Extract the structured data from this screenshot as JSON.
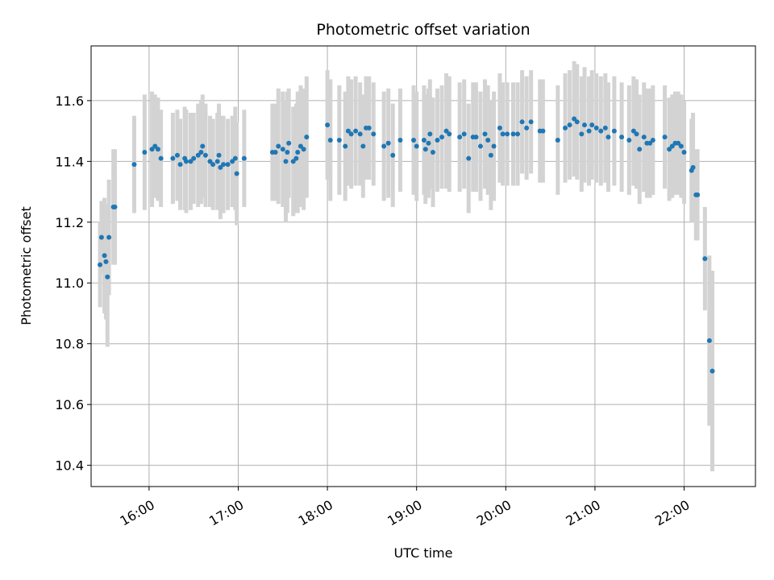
{
  "chart_data": {
    "type": "scatter",
    "title": "Photometric offset variation",
    "xlabel": "UTC time",
    "ylabel": "Photometric offset",
    "x_unit": "UTC time (hours)",
    "xlim": [
      15.35,
      22.8
    ],
    "ylim": [
      10.33,
      11.78
    ],
    "xticks": [
      16,
      17,
      18,
      19,
      20,
      21,
      22
    ],
    "xtick_labels": [
      "16:00",
      "17:00",
      "18:00",
      "19:00",
      "20:00",
      "21:00",
      "22:00"
    ],
    "yticks": [
      10.4,
      10.6,
      10.8,
      11.0,
      11.2,
      11.4,
      11.6
    ],
    "ytick_labels": [
      "10.4",
      "10.6",
      "10.8",
      "11.0",
      "11.2",
      "11.4",
      "11.6"
    ],
    "grid": true,
    "colors": {
      "point": "#1f77b4",
      "errorbar": "#d3d3d3",
      "grid": "#b0b0b0"
    },
    "series": [
      {
        "values": [
          {
            "x": "15:27",
            "y": 11.06,
            "err": 0.14
          },
          {
            "x": "15:28",
            "y": 11.15,
            "err": 0.12
          },
          {
            "x": "15:30",
            "y": 11.09,
            "err": 0.19
          },
          {
            "x": "15:31",
            "y": 11.07,
            "err": 0.19
          },
          {
            "x": "15:32",
            "y": 11.02,
            "err": 0.23
          },
          {
            "x": "15:33",
            "y": 11.15,
            "err": 0.19
          },
          {
            "x": "15:36",
            "y": 11.25,
            "err": 0.19
          },
          {
            "x": "15:37",
            "y": 11.25,
            "err": 0.19
          },
          {
            "x": "15:50",
            "y": 11.39,
            "err": 0.16
          },
          {
            "x": "15:57",
            "y": 11.43,
            "err": 0.19
          },
          {
            "x": "16:02",
            "y": 11.44,
            "err": 0.19
          },
          {
            "x": "16:04",
            "y": 11.45,
            "err": 0.17
          },
          {
            "x": "16:06",
            "y": 11.44,
            "err": 0.17
          },
          {
            "x": "16:08",
            "y": 11.41,
            "err": 0.16
          },
          {
            "x": "16:16",
            "y": 11.41,
            "err": 0.15
          },
          {
            "x": "16:19",
            "y": 11.42,
            "err": 0.15
          },
          {
            "x": "16:21",
            "y": 11.39,
            "err": 0.15
          },
          {
            "x": "16:24",
            "y": 11.41,
            "err": 0.17
          },
          {
            "x": "16:25",
            "y": 11.4,
            "err": 0.17
          },
          {
            "x": "16:28",
            "y": 11.4,
            "err": 0.16
          },
          {
            "x": "16:30",
            "y": 11.41,
            "err": 0.15
          },
          {
            "x": "16:33",
            "y": 11.42,
            "err": 0.17
          },
          {
            "x": "16:35",
            "y": 11.43,
            "err": 0.17
          },
          {
            "x": "16:36",
            "y": 11.45,
            "err": 0.17
          },
          {
            "x": "16:38",
            "y": 11.42,
            "err": 0.17
          },
          {
            "x": "16:41",
            "y": 11.4,
            "err": 0.15
          },
          {
            "x": "16:43",
            "y": 11.39,
            "err": 0.15
          },
          {
            "x": "16:46",
            "y": 11.4,
            "err": 0.16
          },
          {
            "x": "16:47",
            "y": 11.42,
            "err": 0.17
          },
          {
            "x": "16:48",
            "y": 11.38,
            "err": 0.17
          },
          {
            "x": "16:50",
            "y": 11.39,
            "err": 0.16
          },
          {
            "x": "16:53",
            "y": 11.39,
            "err": 0.15
          },
          {
            "x": "16:56",
            "y": 11.4,
            "err": 0.15
          },
          {
            "x": "16:58",
            "y": 11.41,
            "err": 0.17
          },
          {
            "x": "16:59",
            "y": 11.36,
            "err": 0.17
          },
          {
            "x": "17:04",
            "y": 11.41,
            "err": 0.16
          },
          {
            "x": "17:23",
            "y": 11.43,
            "err": 0.16
          },
          {
            "x": "17:25",
            "y": 11.43,
            "err": 0.16
          },
          {
            "x": "17:27",
            "y": 11.45,
            "err": 0.19
          },
          {
            "x": "17:30",
            "y": 11.44,
            "err": 0.19
          },
          {
            "x": "17:32",
            "y": 11.4,
            "err": 0.2
          },
          {
            "x": "17:33",
            "y": 11.43,
            "err": 0.2
          },
          {
            "x": "17:34",
            "y": 11.46,
            "err": 0.18
          },
          {
            "x": "17:37",
            "y": 11.4,
            "err": 0.18
          },
          {
            "x": "17:39",
            "y": 11.41,
            "err": 0.18
          },
          {
            "x": "17:40",
            "y": 11.43,
            "err": 0.2
          },
          {
            "x": "17:42",
            "y": 11.45,
            "err": 0.2
          },
          {
            "x": "17:44",
            "y": 11.44,
            "err": 0.2
          },
          {
            "x": "17:46",
            "y": 11.48,
            "err": 0.2
          },
          {
            "x": "18:00",
            "y": 11.52,
            "err": 0.18
          },
          {
            "x": "18:02",
            "y": 11.47,
            "err": 0.2
          },
          {
            "x": "18:08",
            "y": 11.47,
            "err": 0.18
          },
          {
            "x": "18:12",
            "y": 11.45,
            "err": 0.18
          },
          {
            "x": "18:14",
            "y": 11.5,
            "err": 0.18
          },
          {
            "x": "18:16",
            "y": 11.49,
            "err": 0.18
          },
          {
            "x": "18:19",
            "y": 11.5,
            "err": 0.18
          },
          {
            "x": "18:22",
            "y": 11.49,
            "err": 0.17
          },
          {
            "x": "18:24",
            "y": 11.45,
            "err": 0.17
          },
          {
            "x": "18:26",
            "y": 11.51,
            "err": 0.17
          },
          {
            "x": "18:28",
            "y": 11.51,
            "err": 0.17
          },
          {
            "x": "18:31",
            "y": 11.49,
            "err": 0.17
          },
          {
            "x": "18:38",
            "y": 11.45,
            "err": 0.18
          },
          {
            "x": "18:41",
            "y": 11.46,
            "err": 0.18
          },
          {
            "x": "18:44",
            "y": 11.42,
            "err": 0.17
          },
          {
            "x": "18:49",
            "y": 11.47,
            "err": 0.17
          },
          {
            "x": "18:58",
            "y": 11.47,
            "err": 0.18
          },
          {
            "x": "19:00",
            "y": 11.45,
            "err": 0.18
          },
          {
            "x": "19:05",
            "y": 11.47,
            "err": 0.18
          },
          {
            "x": "19:06",
            "y": 11.44,
            "err": 0.18
          },
          {
            "x": "19:08",
            "y": 11.46,
            "err": 0.18
          },
          {
            "x": "19:09",
            "y": 11.49,
            "err": 0.18
          },
          {
            "x": "19:11",
            "y": 11.43,
            "err": 0.18
          },
          {
            "x": "19:14",
            "y": 11.47,
            "err": 0.17
          },
          {
            "x": "19:17",
            "y": 11.48,
            "err": 0.17
          },
          {
            "x": "19:20",
            "y": 11.5,
            "err": 0.19
          },
          {
            "x": "19:22",
            "y": 11.49,
            "err": 0.19
          },
          {
            "x": "19:29",
            "y": 11.48,
            "err": 0.18
          },
          {
            "x": "19:32",
            "y": 11.49,
            "err": 0.18
          },
          {
            "x": "19:35",
            "y": 11.41,
            "err": 0.18
          },
          {
            "x": "19:38",
            "y": 11.48,
            "err": 0.18
          },
          {
            "x": "19:40",
            "y": 11.48,
            "err": 0.18
          },
          {
            "x": "19:43",
            "y": 11.45,
            "err": 0.18
          },
          {
            "x": "19:46",
            "y": 11.49,
            "err": 0.18
          },
          {
            "x": "19:48",
            "y": 11.47,
            "err": 0.18
          },
          {
            "x": "19:50",
            "y": 11.42,
            "err": 0.18
          },
          {
            "x": "19:52",
            "y": 11.45,
            "err": 0.18
          },
          {
            "x": "19:56",
            "y": 11.51,
            "err": 0.18
          },
          {
            "x": "19:58",
            "y": 11.49,
            "err": 0.17
          },
          {
            "x": "20:01",
            "y": 11.49,
            "err": 0.17
          },
          {
            "x": "20:05",
            "y": 11.49,
            "err": 0.17
          },
          {
            "x": "20:08",
            "y": 11.49,
            "err": 0.17
          },
          {
            "x": "20:11",
            "y": 11.53,
            "err": 0.17
          },
          {
            "x": "20:14",
            "y": 11.51,
            "err": 0.17
          },
          {
            "x": "20:17",
            "y": 11.53,
            "err": 0.17
          },
          {
            "x": "20:23",
            "y": 11.5,
            "err": 0.17
          },
          {
            "x": "20:25",
            "y": 11.5,
            "err": 0.17
          },
          {
            "x": "20:35",
            "y": 11.47,
            "err": 0.18
          },
          {
            "x": "20:40",
            "y": 11.51,
            "err": 0.18
          },
          {
            "x": "20:43",
            "y": 11.52,
            "err": 0.18
          },
          {
            "x": "20:46",
            "y": 11.54,
            "err": 0.19
          },
          {
            "x": "20:48",
            "y": 11.53,
            "err": 0.19
          },
          {
            "x": "20:51",
            "y": 11.49,
            "err": 0.19
          },
          {
            "x": "20:53",
            "y": 11.52,
            "err": 0.19
          },
          {
            "x": "20:56",
            "y": 11.5,
            "err": 0.18
          },
          {
            "x": "20:58",
            "y": 11.52,
            "err": 0.18
          },
          {
            "x": "21:01",
            "y": 11.51,
            "err": 0.18
          },
          {
            "x": "21:04",
            "y": 11.5,
            "err": 0.18
          },
          {
            "x": "21:07",
            "y": 11.51,
            "err": 0.18
          },
          {
            "x": "21:09",
            "y": 11.48,
            "err": 0.18
          },
          {
            "x": "21:13",
            "y": 11.5,
            "err": 0.18
          },
          {
            "x": "21:18",
            "y": 11.48,
            "err": 0.18
          },
          {
            "x": "21:23",
            "y": 11.47,
            "err": 0.18
          },
          {
            "x": "21:26",
            "y": 11.5,
            "err": 0.18
          },
          {
            "x": "21:28",
            "y": 11.49,
            "err": 0.18
          },
          {
            "x": "21:30",
            "y": 11.44,
            "err": 0.18
          },
          {
            "x": "21:33",
            "y": 11.48,
            "err": 0.18
          },
          {
            "x": "21:35",
            "y": 11.46,
            "err": 0.18
          },
          {
            "x": "21:37",
            "y": 11.46,
            "err": 0.18
          },
          {
            "x": "21:39",
            "y": 11.47,
            "err": 0.18
          },
          {
            "x": "21:47",
            "y": 11.48,
            "err": 0.17
          },
          {
            "x": "21:50",
            "y": 11.44,
            "err": 0.17
          },
          {
            "x": "21:52",
            "y": 11.45,
            "err": 0.17
          },
          {
            "x": "21:54",
            "y": 11.46,
            "err": 0.17
          },
          {
            "x": "21:56",
            "y": 11.46,
            "err": 0.17
          },
          {
            "x": "21:58",
            "y": 11.45,
            "err": 0.17
          },
          {
            "x": "22:00",
            "y": 11.43,
            "err": 0.17
          },
          {
            "x": "22:05",
            "y": 11.37,
            "err": 0.17
          },
          {
            "x": "22:06",
            "y": 11.38,
            "err": 0.18
          },
          {
            "x": "22:08",
            "y": 11.29,
            "err": 0.15
          },
          {
            "x": "22:09",
            "y": 11.29,
            "err": 0.15
          },
          {
            "x": "22:14",
            "y": 11.08,
            "err": 0.17
          },
          {
            "x": "22:17",
            "y": 10.81,
            "err": 0.28
          },
          {
            "x": "22:19",
            "y": 10.71,
            "err": 0.33
          }
        ]
      }
    ]
  }
}
